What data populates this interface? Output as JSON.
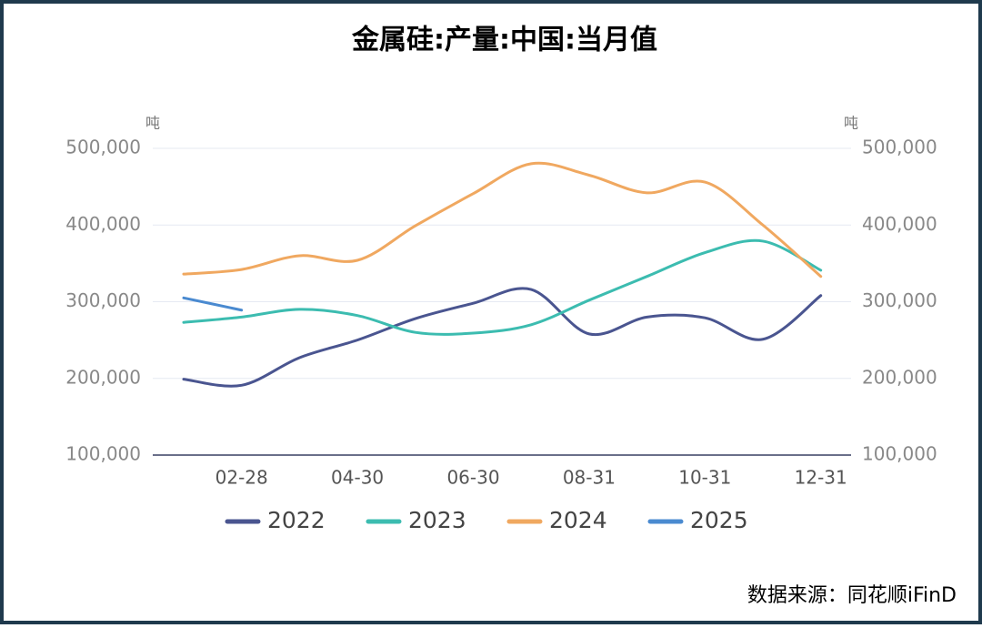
{
  "chart_data": {
    "type": "line",
    "title": "金属硅:产量:中国:当月值",
    "ylabel": "吨",
    "y2label": "吨",
    "categories": [
      null,
      "02-28",
      null,
      "04-30",
      null,
      "06-30",
      null,
      "08-31",
      null,
      "10-31",
      null,
      "12-31"
    ],
    "series": [
      {
        "name": "2022",
        "color": "#4a5590",
        "values": [
          199000,
          191000,
          227000,
          250000,
          278000,
          298000,
          316000,
          258000,
          280000,
          279000,
          251000,
          308000
        ]
      },
      {
        "name": "2023",
        "color": "#3cbcb0",
        "values": [
          273000,
          280000,
          290000,
          282000,
          260000,
          259000,
          270000,
          302000,
          333000,
          364000,
          379000,
          341000
        ]
      },
      {
        "name": "2024",
        "color": "#f0a860",
        "values": [
          336000,
          342000,
          360000,
          354000,
          399000,
          441000,
          480000,
          465000,
          442000,
          456000,
          400000,
          333000
        ]
      },
      {
        "name": "2025",
        "color": "#4a8ad0",
        "values": [
          305000,
          289000,
          null,
          null,
          null,
          null,
          null,
          null,
          null,
          null,
          null,
          null
        ]
      }
    ],
    "ylim": [
      100000,
      500000
    ],
    "yticks": [
      {
        "value": 100000,
        "label": "100,000"
      },
      {
        "value": 200000,
        "label": "200,000"
      },
      {
        "value": 300000,
        "label": "300,000"
      },
      {
        "value": 400000,
        "label": "400,000"
      },
      {
        "value": 500000,
        "label": "500,000"
      }
    ],
    "y2lim": [
      100000,
      500000
    ],
    "y2ticks": [
      {
        "value": 100000,
        "label": "100,000"
      },
      {
        "value": 200000,
        "label": "200,000"
      },
      {
        "value": 300000,
        "label": "300,000"
      },
      {
        "value": 400000,
        "label": "400,000"
      },
      {
        "value": 500000,
        "label": "500,000"
      }
    ],
    "grid": true,
    "legend": "bottom",
    "source": "数据来源：同花顺iFinD"
  }
}
